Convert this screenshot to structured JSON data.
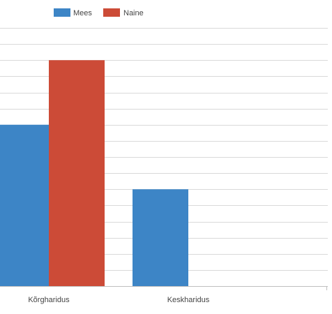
{
  "chart_data": {
    "type": "bar",
    "categories": [
      "Kõrgharidus",
      "Keskharidus"
    ],
    "series": [
      {
        "name": "Mees",
        "color": "#3d85c6",
        "values": [
          5,
          3
        ]
      },
      {
        "name": "Naine",
        "color": "#cc4b37",
        "values": [
          7,
          0
        ]
      }
    ],
    "ylim": [
      0,
      8
    ],
    "grid": true,
    "legend_position": "top"
  }
}
